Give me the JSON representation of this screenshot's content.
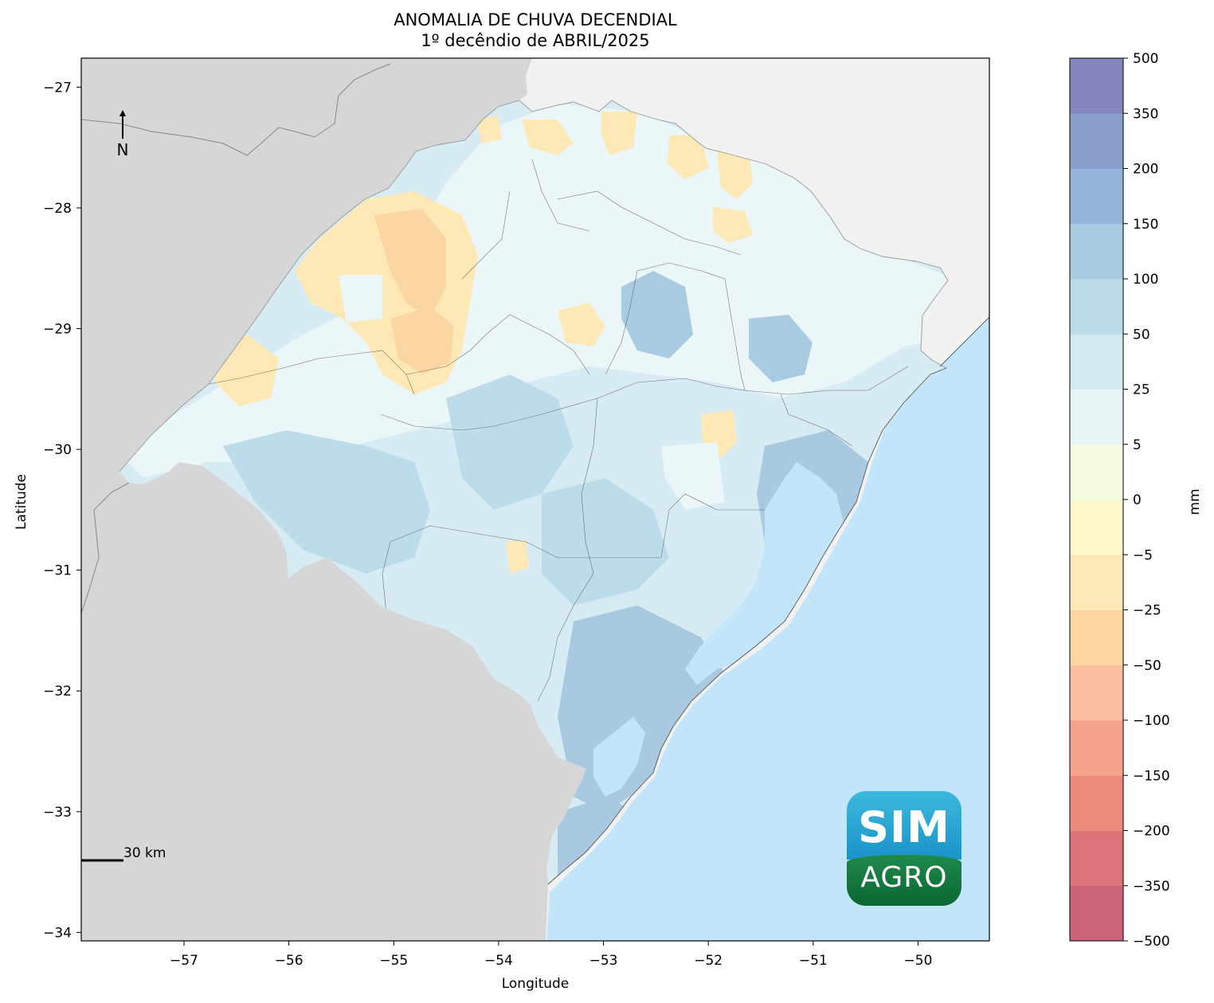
{
  "title": {
    "line1": "ANOMALIA DE CHUVA DECENDIAL",
    "line2": "1º decêndio de ABRIL/2025"
  },
  "axes": {
    "xlabel": "Longitude",
    "ylabel": "Latitude",
    "x_ticks": [
      "−57",
      "−56",
      "−55",
      "−54",
      "−53",
      "−52",
      "−51",
      "−50"
    ],
    "y_ticks": [
      "−27",
      "−28",
      "−29",
      "−30",
      "−31",
      "−32",
      "−33",
      "−34"
    ],
    "x_range": [
      -57.98,
      -49.32
    ],
    "y_range": [
      -34.07,
      -26.76
    ]
  },
  "north_arrow": {
    "label": "N"
  },
  "scale_bar": {
    "label": "30 km"
  },
  "colorbar": {
    "unit_label": "mm",
    "tick_labels": [
      "−500",
      "−350",
      "−200",
      "−150",
      "−100",
      "−50",
      "−25",
      "−5",
      "0",
      "5",
      "25",
      "50",
      "100",
      "150",
      "200",
      "350",
      "500"
    ],
    "colors": [
      "#c96379",
      "#dc7479",
      "#ea8b7d",
      "#f5a48b",
      "#f9be9b",
      "#fcd6a3",
      "#fde8b6",
      "#fdf7cc",
      "#f5fae0",
      "#e8f4f6",
      "#d2eaf1",
      "#bddce9",
      "#a9cbe2",
      "#97b5da",
      "#8a9ecb",
      "#8586bd"
    ]
  },
  "logo": {
    "top_text": "SIM",
    "bottom_text": "AGRO"
  },
  "map_colors": {
    "neighbor_land": "#d6d6d6",
    "background_land": "#f1f1f1",
    "ocean_lagoon": "#c2e5fa",
    "state_base": "#d6ebf3",
    "coastal_wet": "#a9c9e0",
    "positive_anomaly": "#bddce9",
    "slight_positive": "#eaf6f8",
    "negative_anomaly": "#fde8b6",
    "strong_negative": "#fbd6a3"
  }
}
